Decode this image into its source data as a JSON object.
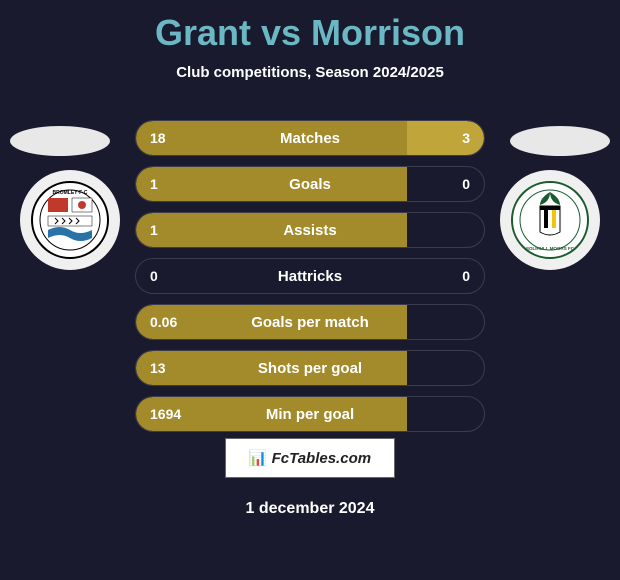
{
  "title": "Grant vs Morrison",
  "subtitle": "Club competitions, Season 2024/2025",
  "date": "1 december 2024",
  "footer_brand": "FcTables.com",
  "colors": {
    "background": "#1a1a2e",
    "title": "#6bb8c4",
    "text": "#ffffff",
    "bar_left": "#a38a2a",
    "bar_right": "#bfa53a",
    "bar_border": "rgba(255,255,255,0.15)"
  },
  "stats": [
    {
      "label": "Matches",
      "left_val": "18",
      "right_val": "3",
      "left_pct": 78,
      "right_pct": 22
    },
    {
      "label": "Goals",
      "left_val": "1",
      "right_val": "0",
      "left_pct": 78,
      "right_pct": 0
    },
    {
      "label": "Assists",
      "left_val": "1",
      "right_val": "",
      "left_pct": 78,
      "right_pct": 0
    },
    {
      "label": "Hattricks",
      "left_val": "0",
      "right_val": "0",
      "left_pct": 0,
      "right_pct": 0
    },
    {
      "label": "Goals per match",
      "left_val": "0.06",
      "right_val": "",
      "left_pct": 78,
      "right_pct": 0
    },
    {
      "label": "Shots per goal",
      "left_val": "13",
      "right_val": "",
      "left_pct": 78,
      "right_pct": 0
    },
    {
      "label": "Min per goal",
      "left_val": "1694",
      "right_val": "",
      "left_pct": 78,
      "right_pct": 0
    }
  ],
  "badges": {
    "left": {
      "name": "bromley-fc-badge"
    },
    "right": {
      "name": "solihull-moors-badge"
    }
  }
}
